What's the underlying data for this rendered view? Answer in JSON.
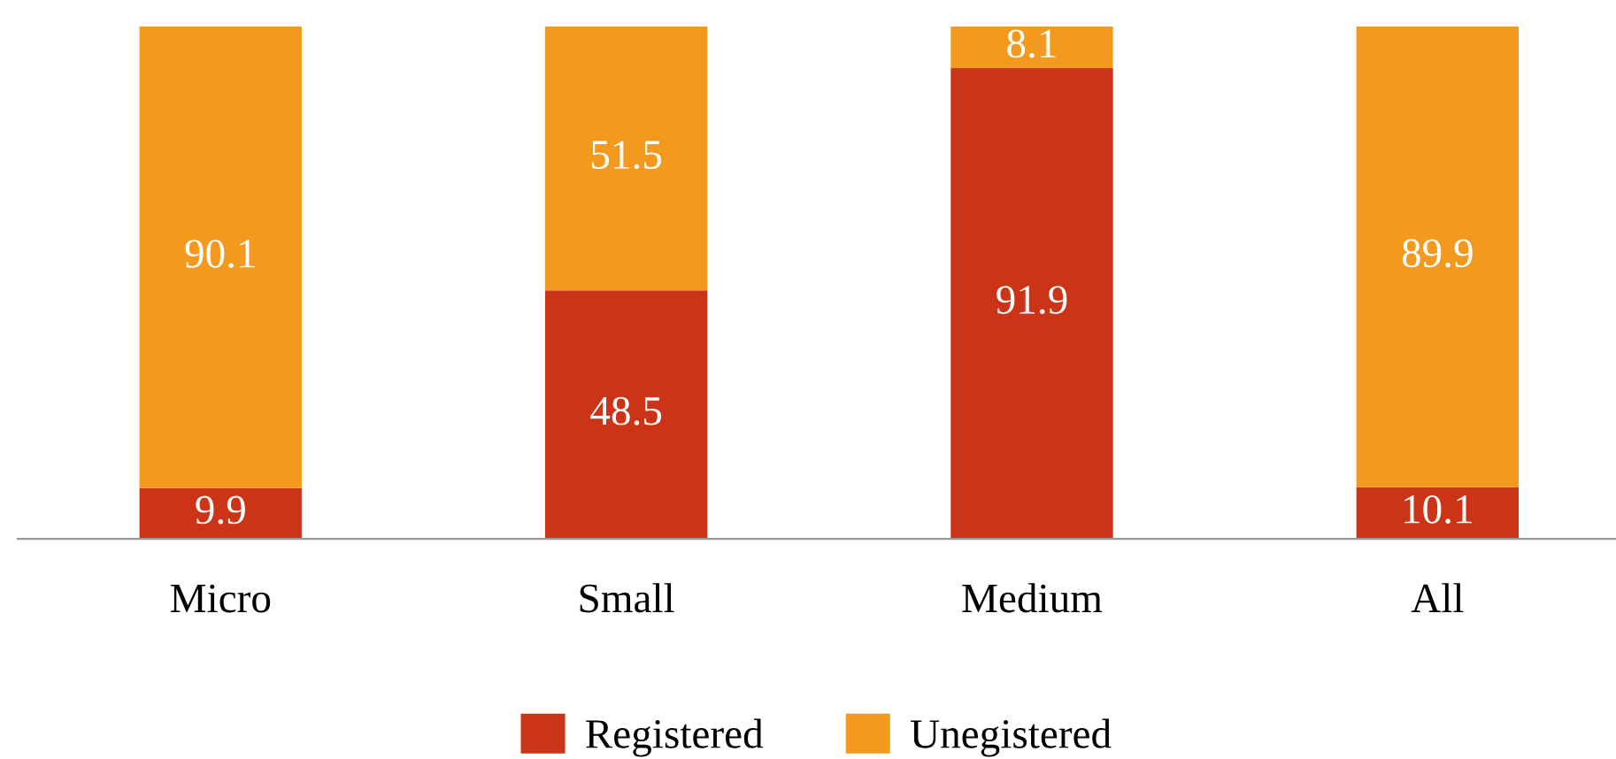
{
  "chart_data": {
    "type": "bar",
    "stacked": true,
    "categories": [
      "Micro",
      "Small",
      "Medium",
      "All"
    ],
    "series": [
      {
        "name": "Registered",
        "color": "#cc3418",
        "values": [
          9.9,
          48.5,
          91.9,
          10.1
        ]
      },
      {
        "name": "Unegistered",
        "color": "#f39a1e",
        "values": [
          90.1,
          51.5,
          8.1,
          89.9
        ]
      }
    ],
    "data_labels": true,
    "legend": "bottom",
    "grid": false,
    "tick_labels": "x"
  }
}
